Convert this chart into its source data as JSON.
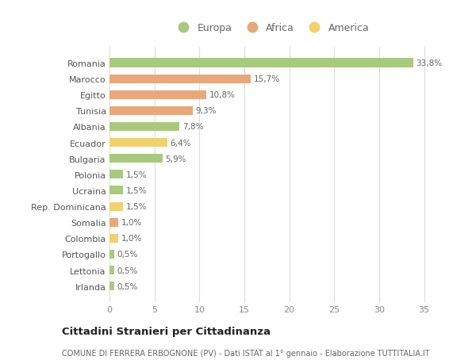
{
  "categories": [
    "Romania",
    "Marocco",
    "Egitto",
    "Tunisia",
    "Albania",
    "Ecuador",
    "Bulgaria",
    "Polonia",
    "Ucraina",
    "Rep. Dominicana",
    "Somalia",
    "Colombia",
    "Portogallo",
    "Lettonia",
    "Irlanda"
  ],
  "values": [
    33.8,
    15.7,
    10.8,
    9.3,
    7.8,
    6.4,
    5.9,
    1.5,
    1.5,
    1.5,
    1.0,
    1.0,
    0.5,
    0.5,
    0.5
  ],
  "labels": [
    "33,8%",
    "15,7%",
    "10,8%",
    "9,3%",
    "7,8%",
    "6,4%",
    "5,9%",
    "1,5%",
    "1,5%",
    "1,5%",
    "1,0%",
    "1,0%",
    "0,5%",
    "0,5%",
    "0,5%"
  ],
  "colors": [
    "#a8c97f",
    "#e8a87c",
    "#e8a87c",
    "#e8a87c",
    "#a8c97f",
    "#f0d070",
    "#a8c97f",
    "#a8c97f",
    "#a8c97f",
    "#f0d070",
    "#e8a87c",
    "#f0d070",
    "#a8c97f",
    "#a8c97f",
    "#a8c97f"
  ],
  "legend_labels": [
    "Europa",
    "Africa",
    "America"
  ],
  "legend_colors": [
    "#a8c97f",
    "#e8a87c",
    "#f0d070"
  ],
  "title": "Cittadini Stranieri per Cittadinanza",
  "subtitle": "COMUNE DI FERRERA ERBOGNONE (PV) - Dati ISTAT al 1° gennaio - Elaborazione TUTTITALIA.IT",
  "xlim": [
    0,
    36
  ],
  "xticks": [
    0,
    5,
    10,
    15,
    20,
    25,
    30,
    35
  ],
  "background_color": "#ffffff",
  "grid_color": "#dddddd"
}
